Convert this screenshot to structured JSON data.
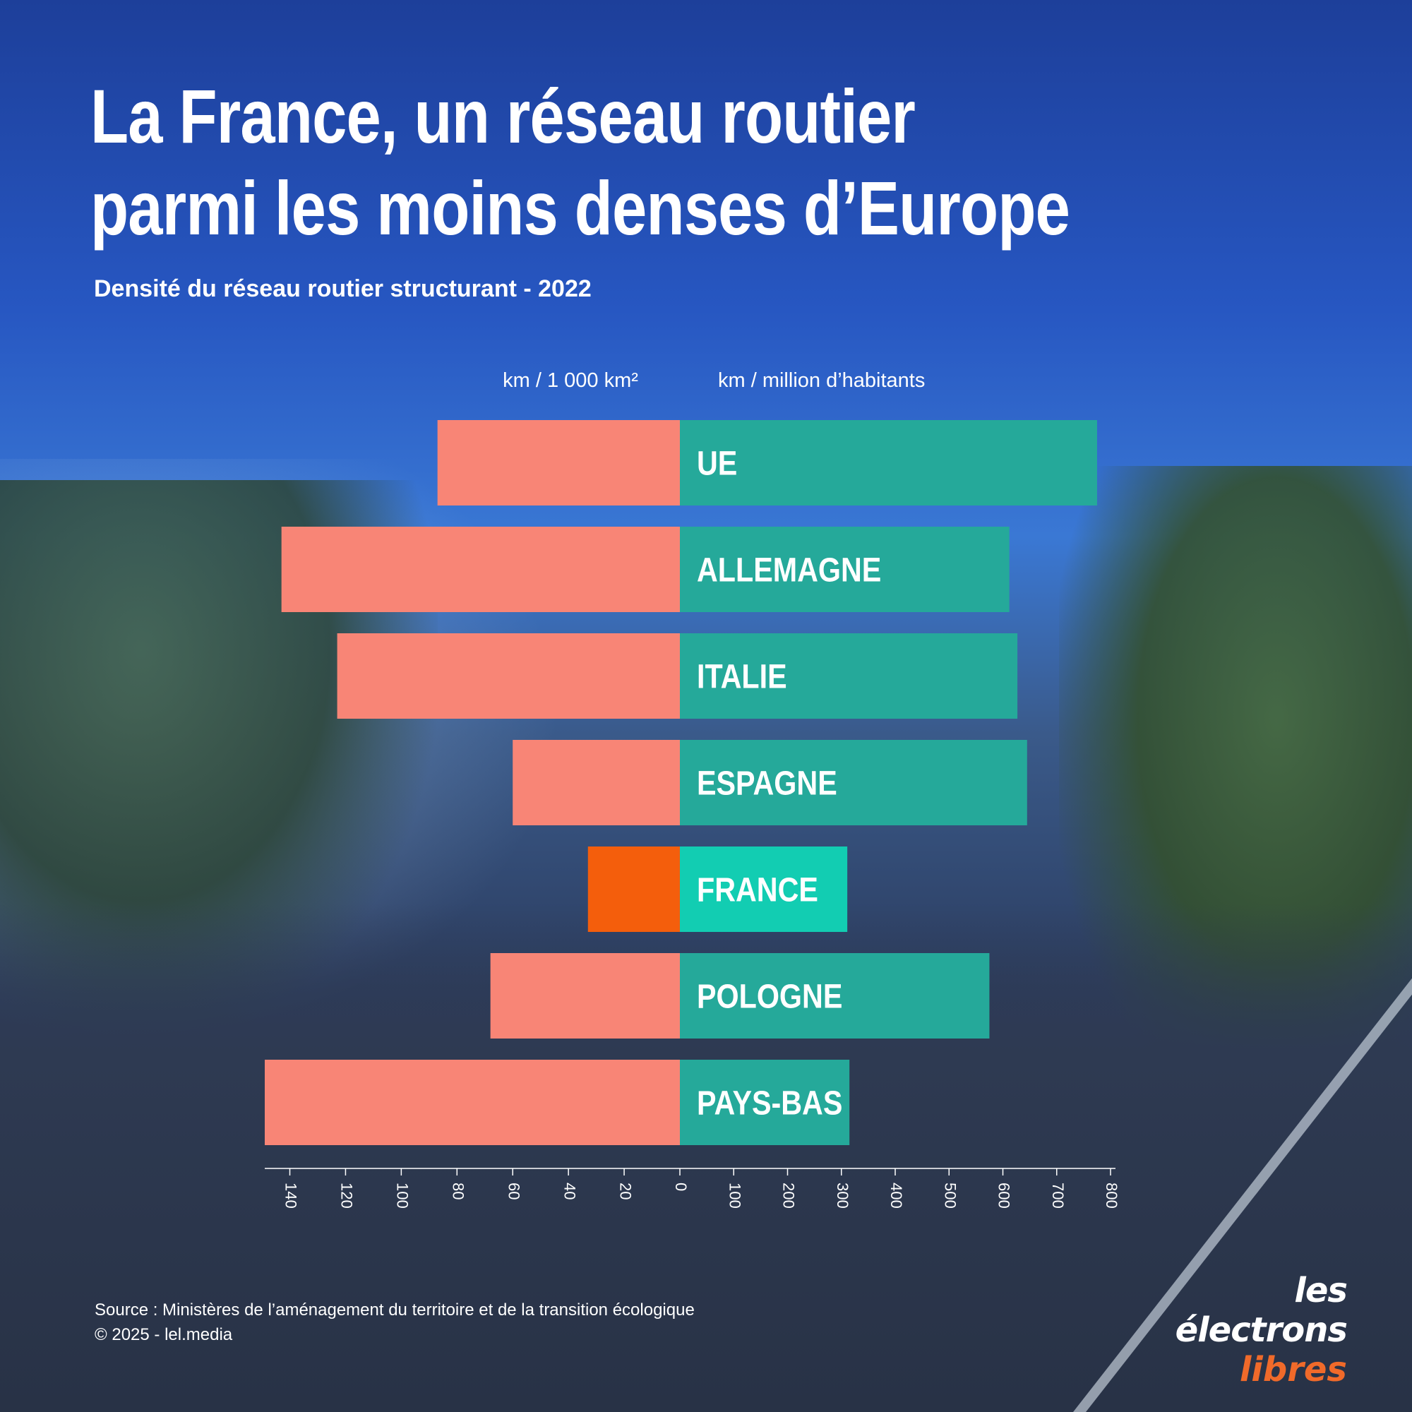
{
  "title_line1": "La France, un réseau routier",
  "title_line2": "parmi les moins denses d’Europe",
  "subtitle": "Densité du réseau routier structurant - 2022",
  "footer": {
    "source": "Source : Ministères de l’aménagement du territoire et de la transition écologique",
    "copyright": "© 2025 - lel.media"
  },
  "logo": {
    "line1": "les électrons",
    "line2": "libres"
  },
  "colors": {
    "left_bar": "#f88576",
    "right_bar": "#25a99a",
    "left_highlight": "#f45e0c",
    "right_highlight": "#12cdb2"
  },
  "chart_data": {
    "type": "bar",
    "orientation": "horizontal-diverging",
    "left_axis_label": "km / 1 000 km²",
    "right_axis_label": "km / million d’habitants",
    "categories": [
      "UE",
      "ALLEMAGNE",
      "ITALIE",
      "ESPAGNE",
      "FRANCE",
      "POLOGNE",
      "PAYS-BAS"
    ],
    "highlight": "FRANCE",
    "series": [
      {
        "values": [
          87,
          143,
          123,
          60,
          33,
          68,
          149
        ],
        "side": "left"
      },
      {
        "values": [
          775,
          612,
          627,
          645,
          311,
          575,
          315
        ],
        "side": "right"
      }
    ],
    "left_ticks": [
      "140",
      "120",
      "100",
      "80",
      "60",
      "40",
      "20",
      "0"
    ],
    "left_tick_values": [
      140,
      120,
      100,
      80,
      60,
      40,
      20,
      0
    ],
    "right_ticks": [
      "100",
      "200",
      "300",
      "400",
      "500",
      "600",
      "700",
      "800"
    ],
    "right_tick_values": [
      100,
      200,
      300,
      400,
      500,
      600,
      700,
      800
    ],
    "left_range": [
      0,
      149
    ],
    "right_range": [
      0,
      800
    ],
    "grid": false
  }
}
